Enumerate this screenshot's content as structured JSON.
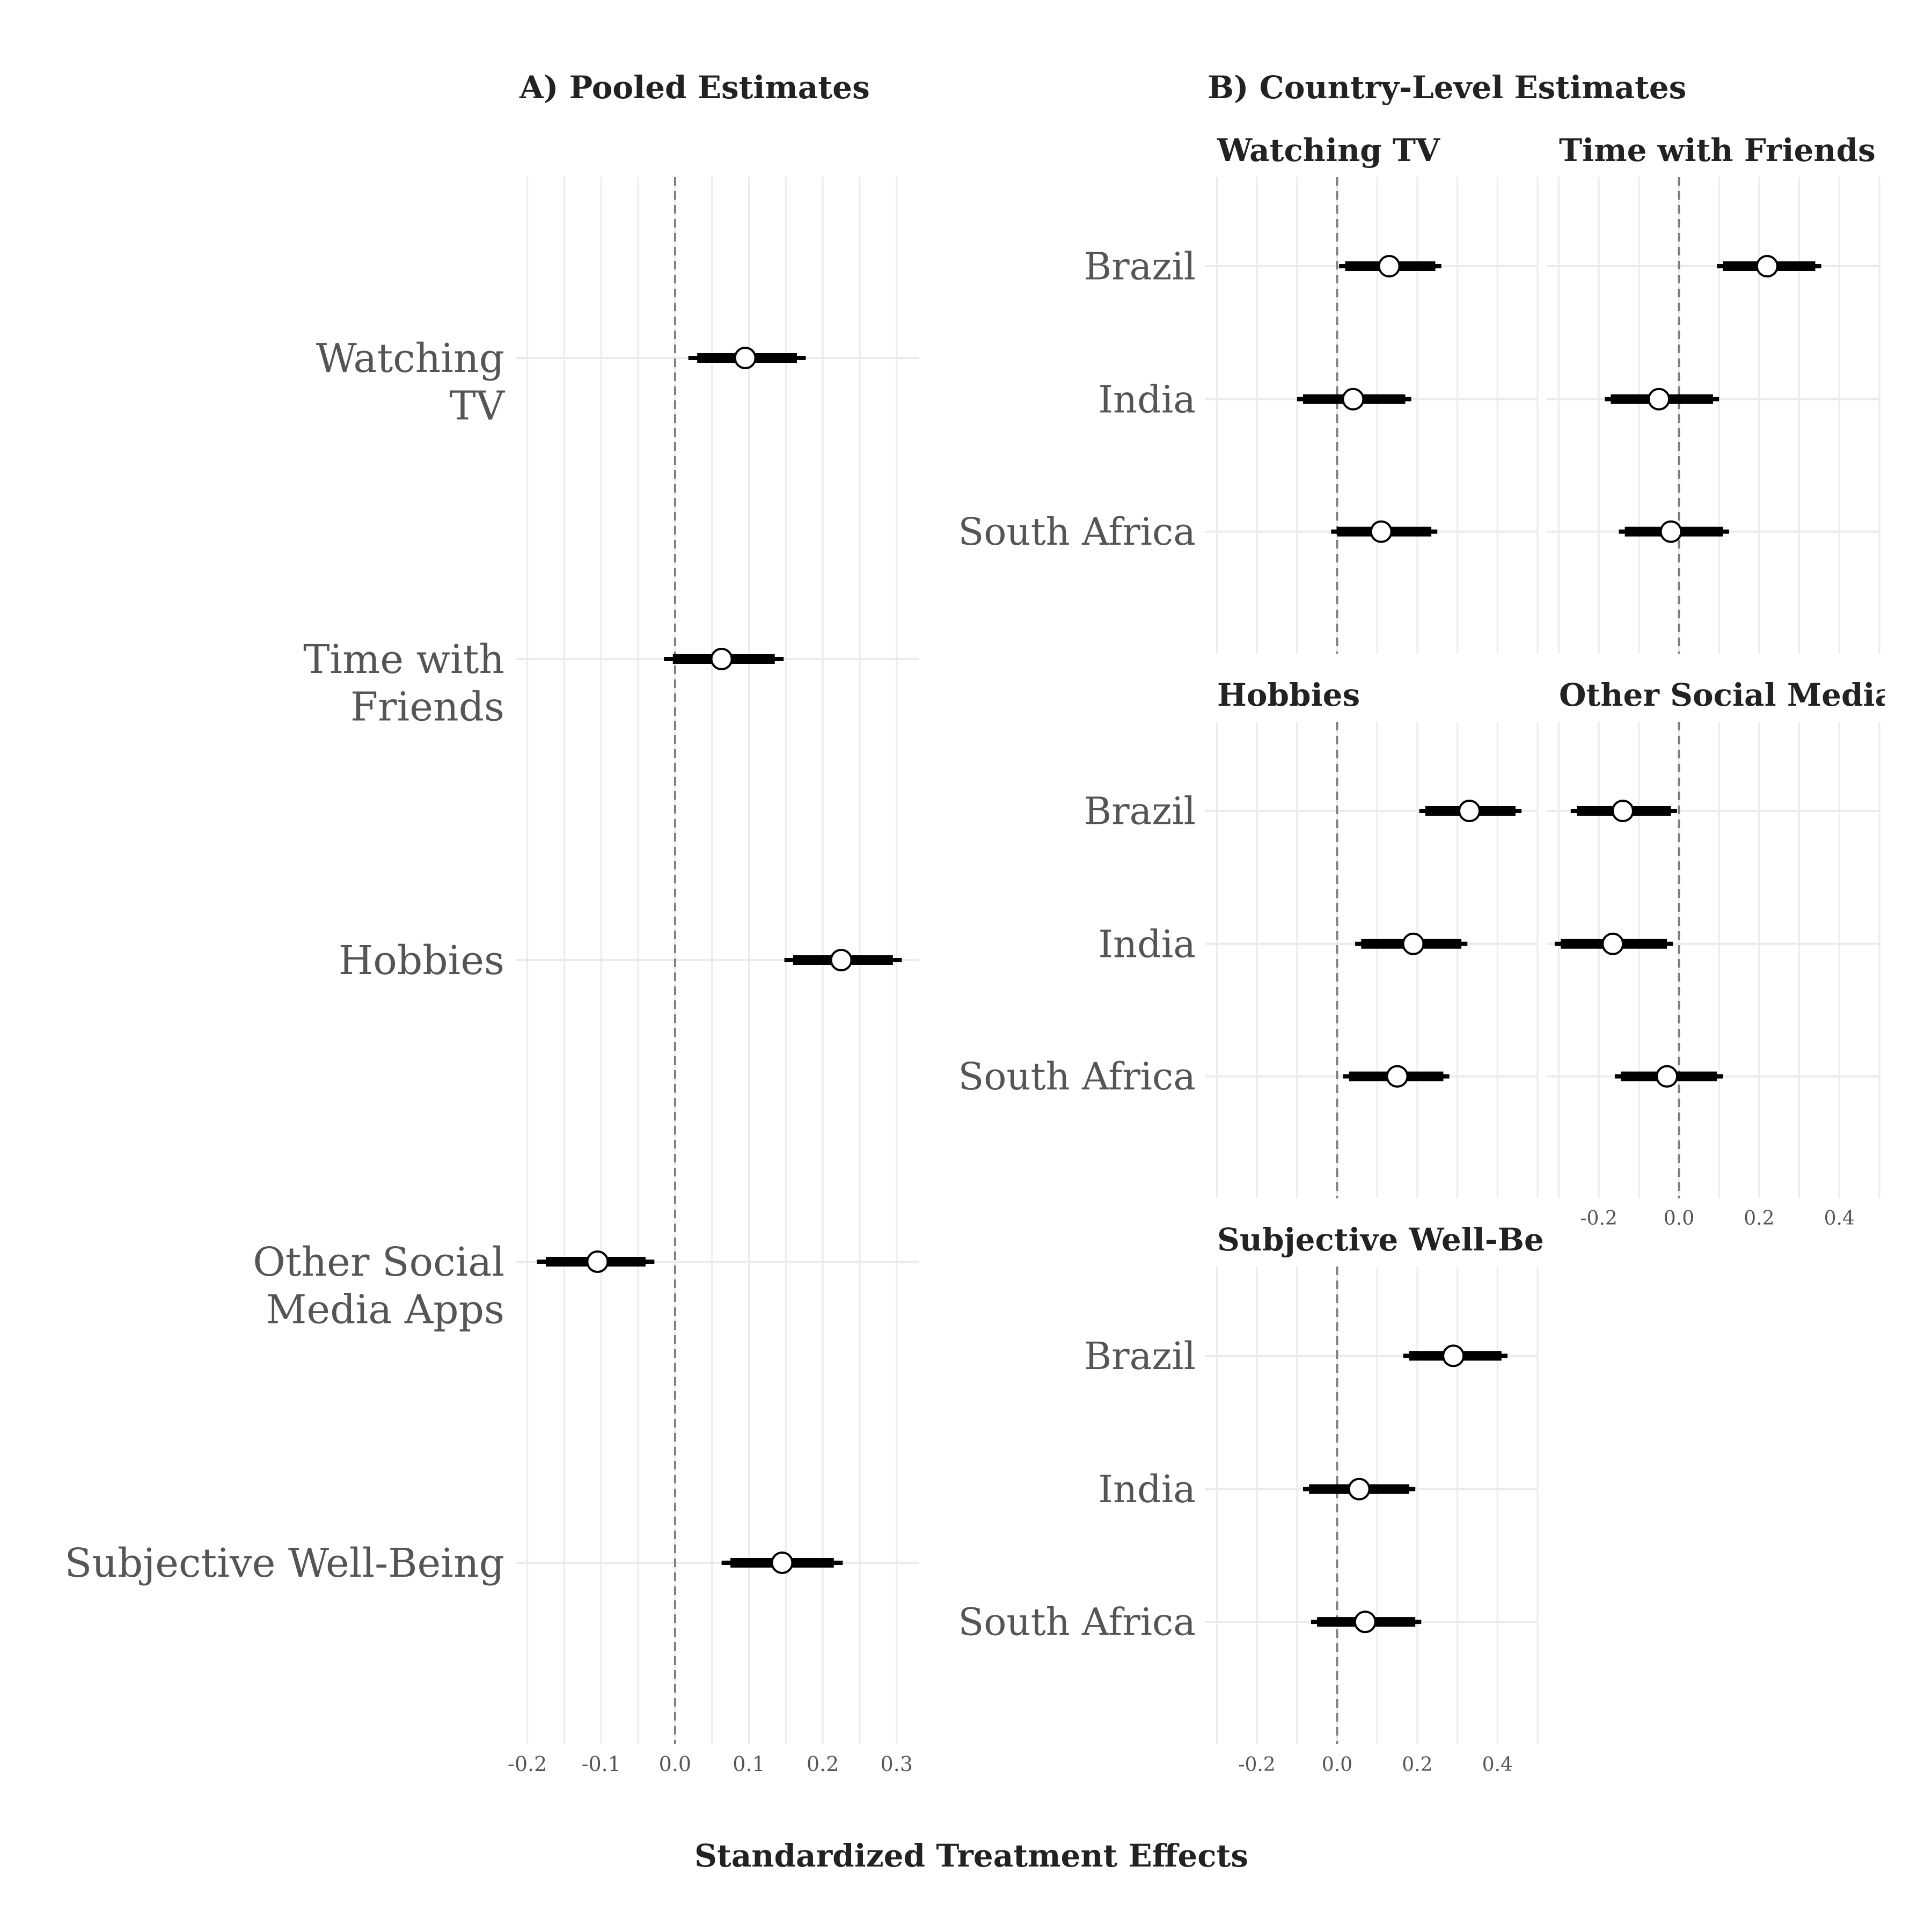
{
  "chart_data": [
    {
      "type": "scatter",
      "panel_title": "A) Pooled Estimates",
      "categories": [
        "Watching\nTV",
        "Time with\nFriends",
        "Hobbies",
        "Other Social\nMedia Apps",
        "Subjective Well-Being"
      ],
      "estimates": [
        0.095,
        0.063,
        0.225,
        -0.105,
        0.145
      ],
      "ci_inner": [
        [
          0.03,
          0.165
        ],
        [
          -0.003,
          0.135
        ],
        [
          0.16,
          0.295
        ],
        [
          -0.175,
          -0.04
        ],
        [
          0.075,
          0.215
        ]
      ],
      "ci_outer": [
        [
          0.018,
          0.177
        ],
        [
          -0.015,
          0.147
        ],
        [
          0.148,
          0.307
        ],
        [
          -0.187,
          -0.028
        ],
        [
          0.063,
          0.227
        ]
      ],
      "xlim": [
        -0.215,
        0.33
      ],
      "xticks": [
        -0.2,
        -0.1,
        0.0,
        0.1,
        0.2,
        0.3
      ],
      "xtick_labels": [
        "-0.2",
        "-0.1",
        "0.0",
        "0.1",
        "0.2",
        "0.3"
      ],
      "reference_line": 0
    },
    {
      "type": "scatter",
      "panel_title": "B) Country-Level Estimates",
      "countries": [
        "Brazil",
        "India",
        "South Africa"
      ],
      "xlim": [
        -0.33,
        0.5
      ],
      "xticks": [
        -0.2,
        0.0,
        0.2,
        0.4
      ],
      "xtick_labels": [
        "-0.2",
        "0.0",
        "0.2",
        "0.4"
      ],
      "reference_line": 0,
      "facets": [
        {
          "title": "Watching TV",
          "estimates": [
            0.13,
            0.04,
            0.11
          ],
          "ci_inner": [
            [
              0.02,
              0.245
            ],
            [
              -0.085,
              0.17
            ],
            [
              0.0,
              0.235
            ]
          ],
          "ci_outer": [
            [
              0.005,
              0.26
            ],
            [
              -0.1,
              0.185
            ],
            [
              -0.015,
              0.25
            ]
          ]
        },
        {
          "title": "Time with Friends",
          "estimates": [
            0.22,
            -0.05,
            -0.02
          ],
          "ci_inner": [
            [
              0.11,
              0.34
            ],
            [
              -0.17,
              0.085
            ],
            [
              -0.135,
              0.11
            ]
          ],
          "ci_outer": [
            [
              0.095,
              0.355
            ],
            [
              -0.185,
              0.1
            ],
            [
              -0.15,
              0.125
            ]
          ]
        },
        {
          "title": "Hobbies",
          "estimates": [
            0.33,
            0.19,
            0.15
          ],
          "ci_inner": [
            [
              0.22,
              0.445
            ],
            [
              0.06,
              0.31
            ],
            [
              0.03,
              0.265
            ]
          ],
          "ci_outer": [
            [
              0.205,
              0.46
            ],
            [
              0.045,
              0.325
            ],
            [
              0.015,
              0.28
            ]
          ]
        },
        {
          "title": "Other Social Media",
          "estimates": [
            -0.14,
            -0.165,
            -0.03
          ],
          "ci_inner": [
            [
              -0.255,
              -0.02
            ],
            [
              -0.295,
              -0.03
            ],
            [
              -0.145,
              0.095
            ]
          ],
          "ci_outer": [
            [
              -0.27,
              -0.005
            ],
            [
              -0.31,
              -0.015
            ],
            [
              -0.16,
              0.11
            ]
          ]
        },
        {
          "title": "Subjective Well-Bei",
          "estimates": [
            0.29,
            0.055,
            0.07
          ],
          "ci_inner": [
            [
              0.18,
              0.41
            ],
            [
              -0.07,
              0.18
            ],
            [
              -0.05,
              0.195
            ]
          ],
          "ci_outer": [
            [
              0.165,
              0.425
            ],
            [
              -0.085,
              0.195
            ],
            [
              -0.065,
              0.21
            ]
          ]
        }
      ]
    }
  ],
  "xlabel": "Standardized Treatment Effects",
  "colors": {
    "grid": "#ebebeb",
    "reference_line": "#7f7f7f",
    "interval": "#000000",
    "point_fill": "#ffffff",
    "point_stroke": "#000000"
  }
}
